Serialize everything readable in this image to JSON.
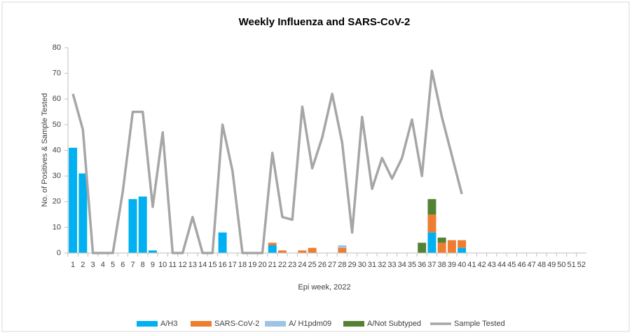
{
  "chart_data": {
    "type": "bar",
    "stacked": true,
    "title": "Weekly Influenza and SARS-CoV-2",
    "x_label": "Epi week, 2022",
    "y_label": "No. of Positives & Sample Tested",
    "categories": [
      1,
      2,
      3,
      4,
      5,
      6,
      7,
      8,
      9,
      10,
      11,
      12,
      13,
      14,
      15,
      16,
      17,
      18,
      19,
      20,
      21,
      22,
      23,
      24,
      25,
      26,
      27,
      28,
      29,
      30,
      31,
      32,
      33,
      34,
      35,
      36,
      37,
      38,
      39,
      40,
      41,
      42,
      43,
      44,
      45,
      46,
      47,
      48,
      49,
      50,
      51,
      52
    ],
    "ylim": [
      0,
      80
    ],
    "yticks": [
      0,
      10,
      20,
      30,
      40,
      50,
      60,
      70,
      80
    ],
    "grid": false,
    "legend": "bottom",
    "series": [
      {
        "name": "A/H3",
        "color": "#00b0f0",
        "values": [
          41,
          31,
          0,
          0,
          0,
          0,
          21,
          22,
          1,
          0,
          0,
          0,
          0,
          0,
          0,
          8,
          0,
          0,
          0,
          0,
          3,
          0,
          0,
          0,
          0,
          0,
          0,
          0,
          0,
          0,
          0,
          0,
          0,
          0,
          0,
          0,
          8,
          0,
          0,
          2,
          0,
          0,
          0,
          0,
          0,
          0,
          0,
          0,
          0,
          0,
          0,
          0
        ]
      },
      {
        "name": "SARS-CoV-2",
        "color": "#ed7d31",
        "values": [
          0,
          0,
          0,
          0,
          0,
          0,
          0,
          0,
          0,
          0,
          0,
          0,
          0,
          0,
          0,
          0,
          0,
          0,
          0,
          0,
          1,
          1,
          0,
          1,
          2,
          0,
          0,
          2,
          0,
          0,
          0,
          0,
          0,
          0,
          0,
          0,
          7,
          4,
          5,
          3,
          0,
          0,
          0,
          0,
          0,
          0,
          0,
          0,
          0,
          0,
          0,
          0
        ]
      },
      {
        "name": "A/ H1pdm09",
        "color": "#9dc3e6",
        "values": [
          0,
          0,
          0,
          0,
          0,
          0,
          0,
          0,
          0,
          0,
          0,
          0,
          0,
          0,
          0,
          0,
          0,
          0,
          0,
          0,
          0,
          0,
          0,
          0,
          0,
          0,
          0,
          1,
          0,
          0,
          0,
          0,
          0,
          0,
          0,
          0,
          0,
          0,
          0,
          0,
          0,
          0,
          0,
          0,
          0,
          0,
          0,
          0,
          0,
          0,
          0,
          0
        ]
      },
      {
        "name": "A/Not Subtyped",
        "color": "#548235",
        "values": [
          0,
          0,
          0,
          0,
          0,
          0,
          0,
          0,
          0,
          0,
          0,
          0,
          0,
          0,
          0,
          0,
          0,
          0,
          0,
          0,
          0,
          0,
          0,
          0,
          0,
          0,
          0,
          0,
          0,
          0,
          0,
          0,
          0,
          0,
          0,
          4,
          6,
          2,
          0,
          0,
          0,
          0,
          0,
          0,
          0,
          0,
          0,
          0,
          0,
          0,
          0,
          0
        ]
      },
      {
        "name": "Sample Tested",
        "color": "#a6a6a6",
        "type": "line",
        "values": [
          62,
          48,
          0,
          0,
          0,
          24,
          55,
          55,
          18,
          47,
          0,
          0,
          14,
          0,
          0,
          50,
          32,
          0,
          0,
          0,
          39,
          14,
          13,
          57,
          33,
          45,
          62,
          43,
          8,
          53,
          25,
          37,
          29,
          37,
          52,
          30,
          71,
          53,
          38,
          23,
          null,
          null,
          null,
          null,
          null,
          null,
          null,
          null,
          null,
          null,
          null,
          null
        ]
      }
    ]
  }
}
